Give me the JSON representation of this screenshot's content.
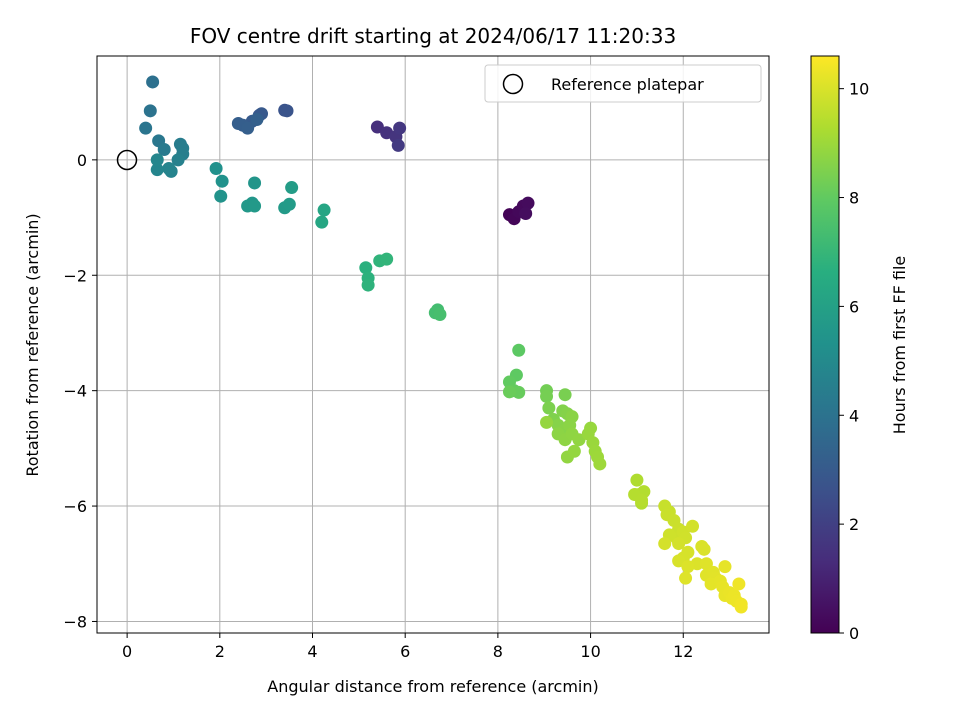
{
  "chart_data": {
    "type": "scatter",
    "title": "FOV centre drift starting at 2024/06/17 11:20:33",
    "xlabel": "Angular distance from reference (arcmin)",
    "ylabel": "Rotation from reference (arcmin)",
    "xlim": [
      -0.65,
      13.85
    ],
    "ylim": [
      -8.2,
      1.8
    ],
    "xticks": [
      0,
      2,
      4,
      6,
      8,
      10,
      12
    ],
    "yticks": [
      0,
      -2,
      -4,
      -6,
      -8
    ],
    "xtick_labels": [
      "0",
      "2",
      "4",
      "6",
      "8",
      "10",
      "12"
    ],
    "ytick_labels": [
      "0",
      "−2",
      "−4",
      "−6",
      "−8"
    ],
    "grid": true,
    "legend": {
      "position": "top-right",
      "entries": [
        "Reference platepar"
      ]
    },
    "reference_point": {
      "x": 0,
      "y": 0,
      "marker": "open-circle"
    },
    "colorbar": {
      "label": "Hours from first FF file",
      "range": [
        0,
        10.6
      ],
      "ticks": [
        0,
        2,
        4,
        6,
        8,
        10
      ],
      "tick_labels": [
        "0",
        "2",
        "4",
        "6",
        "8",
        "10"
      ],
      "colormap": "viridis"
    },
    "points": [
      [
        8.25,
        -0.95,
        0.1
      ],
      [
        8.35,
        -1.02,
        0.15
      ],
      [
        8.45,
        -0.9,
        0.2
      ],
      [
        8.55,
        -0.8,
        0.25
      ],
      [
        8.65,
        -0.75,
        0.3
      ],
      [
        8.6,
        -0.93,
        0.35
      ],
      [
        5.4,
        0.57,
        1.4
      ],
      [
        5.6,
        0.47,
        1.5
      ],
      [
        5.8,
        0.4,
        1.6
      ],
      [
        5.88,
        0.55,
        1.7
      ],
      [
        5.85,
        0.25,
        1.8
      ],
      [
        3.4,
        0.86,
        2.7
      ],
      [
        3.45,
        0.85,
        2.75
      ],
      [
        2.85,
        0.77,
        2.9
      ],
      [
        2.9,
        0.8,
        2.95
      ],
      [
        2.7,
        0.67,
        3.0
      ],
      [
        2.5,
        0.6,
        3.1
      ],
      [
        2.4,
        0.63,
        3.15
      ],
      [
        2.6,
        0.55,
        3.2
      ],
      [
        2.8,
        0.7,
        3.25
      ],
      [
        0.55,
        1.35,
        3.9
      ],
      [
        0.5,
        0.85,
        4.0
      ],
      [
        0.4,
        0.55,
        4.1
      ],
      [
        0.68,
        0.33,
        4.2
      ],
      [
        0.8,
        0.18,
        4.3
      ],
      [
        1.15,
        0.27,
        4.4
      ],
      [
        1.2,
        0.2,
        4.45
      ],
      [
        1.2,
        0.1,
        4.5
      ],
      [
        1.1,
        0.0,
        4.6
      ],
      [
        0.95,
        -0.2,
        4.7
      ],
      [
        0.9,
        -0.15,
        4.75
      ],
      [
        0.65,
        -0.17,
        4.8
      ],
      [
        0.65,
        0.0,
        4.85
      ],
      [
        1.92,
        -0.15,
        5.3
      ],
      [
        2.05,
        -0.37,
        5.35
      ],
      [
        2.02,
        -0.63,
        5.4
      ],
      [
        2.75,
        -0.4,
        5.5
      ],
      [
        2.7,
        -0.75,
        5.55
      ],
      [
        2.6,
        -0.8,
        5.6
      ],
      [
        2.75,
        -0.8,
        5.65
      ],
      [
        3.4,
        -0.83,
        5.7
      ],
      [
        3.5,
        -0.77,
        5.75
      ],
      [
        3.55,
        -0.48,
        5.8
      ],
      [
        4.25,
        -0.87,
        6.2
      ],
      [
        4.2,
        -1.08,
        6.25
      ],
      [
        5.15,
        -1.87,
        6.7
      ],
      [
        5.2,
        -2.05,
        6.75
      ],
      [
        5.2,
        -2.17,
        6.8
      ],
      [
        5.45,
        -1.75,
        6.85
      ],
      [
        5.6,
        -1.72,
        6.9
      ],
      [
        6.7,
        -2.6,
        7.3
      ],
      [
        6.65,
        -2.65,
        7.35
      ],
      [
        6.75,
        -2.68,
        7.4
      ],
      [
        8.45,
        -3.3,
        7.9
      ],
      [
        8.4,
        -3.73,
        7.95
      ],
      [
        8.25,
        -3.85,
        8.0
      ],
      [
        8.35,
        -4.0,
        8.05
      ],
      [
        8.45,
        -4.03,
        8.1
      ],
      [
        8.25,
        -4.02,
        8.15
      ],
      [
        9.05,
        -4.0,
        8.3
      ],
      [
        9.05,
        -4.1,
        8.35
      ],
      [
        9.45,
        -4.07,
        8.4
      ],
      [
        9.1,
        -4.3,
        8.45
      ],
      [
        9.2,
        -4.5,
        8.5
      ],
      [
        9.4,
        -4.35,
        8.55
      ],
      [
        9.5,
        -4.4,
        8.6
      ],
      [
        9.3,
        -4.6,
        8.62
      ],
      [
        9.4,
        -4.7,
        8.65
      ],
      [
        9.6,
        -4.45,
        8.68
      ],
      [
        9.55,
        -4.6,
        8.7
      ],
      [
        9.3,
        -4.75,
        8.72
      ],
      [
        9.45,
        -4.85,
        8.75
      ],
      [
        9.6,
        -4.75,
        8.78
      ],
      [
        9.75,
        -4.85,
        8.8
      ],
      [
        9.5,
        -5.15,
        8.82
      ],
      [
        9.65,
        -5.05,
        8.85
      ],
      [
        9.05,
        -4.55,
        8.87
      ],
      [
        10.0,
        -4.65,
        8.9
      ],
      [
        9.95,
        -4.75,
        8.92
      ],
      [
        10.05,
        -4.9,
        8.95
      ],
      [
        10.1,
        -5.05,
        8.98
      ],
      [
        10.15,
        -5.15,
        9.0
      ],
      [
        10.2,
        -5.27,
        9.02
      ],
      [
        11.0,
        -5.55,
        9.3
      ],
      [
        11.05,
        -5.8,
        9.32
      ],
      [
        11.1,
        -5.95,
        9.35
      ],
      [
        11.15,
        -5.75,
        9.37
      ],
      [
        10.95,
        -5.8,
        9.4
      ],
      [
        11.1,
        -5.9,
        9.42
      ],
      [
        11.6,
        -6.0,
        9.7
      ],
      [
        11.7,
        -6.1,
        9.72
      ],
      [
        11.65,
        -6.15,
        9.74
      ],
      [
        11.8,
        -6.25,
        9.76
      ],
      [
        11.9,
        -6.4,
        9.78
      ],
      [
        11.85,
        -6.55,
        9.8
      ],
      [
        11.7,
        -6.5,
        9.82
      ],
      [
        12.0,
        -6.45,
        9.84
      ],
      [
        12.05,
        -6.55,
        9.86
      ],
      [
        12.2,
        -6.35,
        9.88
      ],
      [
        11.9,
        -6.65,
        9.9
      ],
      [
        11.6,
        -6.65,
        9.92
      ],
      [
        12.0,
        -6.9,
        9.94
      ],
      [
        12.1,
        -6.8,
        9.96
      ],
      [
        11.9,
        -6.95,
        9.98
      ],
      [
        12.4,
        -6.7,
        10.0
      ],
      [
        12.45,
        -6.75,
        10.02
      ],
      [
        12.3,
        -7.0,
        10.04
      ],
      [
        12.1,
        -7.05,
        10.06
      ],
      [
        12.05,
        -7.25,
        10.08
      ],
      [
        12.5,
        -7.0,
        10.1
      ],
      [
        12.5,
        -7.2,
        10.12
      ],
      [
        12.65,
        -7.15,
        10.14
      ],
      [
        12.7,
        -7.25,
        10.16
      ],
      [
        12.6,
        -7.35,
        10.18
      ],
      [
        12.8,
        -7.3,
        10.2
      ],
      [
        12.9,
        -7.05,
        10.22
      ],
      [
        12.85,
        -7.4,
        10.24
      ],
      [
        12.9,
        -7.55,
        10.26
      ],
      [
        13.0,
        -7.5,
        10.28
      ],
      [
        13.05,
        -7.6,
        10.3
      ],
      [
        13.1,
        -7.55,
        10.32
      ],
      [
        13.15,
        -7.65,
        10.34
      ],
      [
        13.2,
        -7.35,
        10.36
      ],
      [
        13.25,
        -7.7,
        10.38
      ],
      [
        13.25,
        -7.75,
        10.4
      ]
    ]
  }
}
